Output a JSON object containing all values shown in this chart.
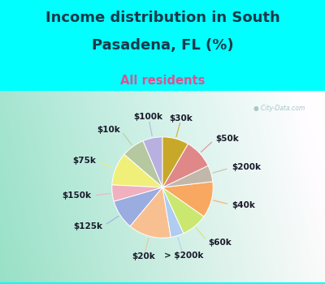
{
  "title_line1": "Income distribution in South",
  "title_line2": "Pasadena, FL (%)",
  "subtitle": "All residents",
  "title_color": "#1a3a4a",
  "subtitle_color": "#e05090",
  "bg_color": "#00ffff",
  "labels": [
    "$100k",
    "$10k",
    "$75k",
    "$150k",
    "$125k",
    "$20k",
    "> $200k",
    "$60k",
    "$40k",
    "$200k",
    "$50k",
    "$30k"
  ],
  "values": [
    6,
    7,
    10,
    5,
    9,
    13,
    4,
    8,
    11,
    5,
    9,
    8
  ],
  "colors": [
    "#b8b0e0",
    "#b5c8a0",
    "#f0ef7a",
    "#f0b0be",
    "#9aace0",
    "#f8c090",
    "#b0ccf0",
    "#cae870",
    "#f8a860",
    "#c2b8aa",
    "#e08888",
    "#c8a828"
  ],
  "startangle": 90,
  "figsize": [
    4.0,
    3.5
  ],
  "dpi": 100,
  "label_fontsize": 7.5,
  "title_fontsize": 13,
  "subtitle_fontsize": 10.5
}
